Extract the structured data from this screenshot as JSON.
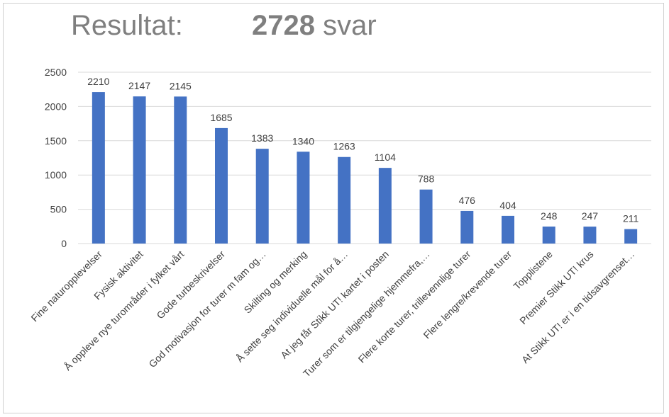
{
  "header": {
    "label": "Resultat:",
    "count": "2728",
    "unit": "svar"
  },
  "colors": {
    "bar": "#4472c4",
    "grid": "#d9d9d9",
    "text": "#404040",
    "title": "#7f7f7f"
  },
  "chart_data": {
    "type": "bar",
    "title": "",
    "xlabel": "",
    "ylabel": "",
    "ylim": [
      0,
      2500
    ],
    "yticks": [
      0,
      500,
      1000,
      1500,
      2000,
      2500
    ],
    "grid": true,
    "categories": [
      "Fine naturopplevelser",
      "Fysisk aktivitet",
      "Å oppleve nye turområder i fylket vårt",
      "Gode turbeskrivelser",
      "God motivasjon for turer m fam og…",
      "Skilting og merking",
      "Å sette seg individuelle mål for å…",
      "At jeg får Stikk UT! kartet i posten",
      "Turer som er tilgjengelige hjemmefra,…",
      "Flere korte turer, trillevennlige turer",
      "Flere lengre/krevende turer",
      "Topplistene",
      "Premier Stikk UT! krus",
      "At Stikk UT! er i en tidsavgrenset…"
    ],
    "values": [
      2210,
      2147,
      2145,
      1685,
      1383,
      1340,
      1263,
      1104,
      788,
      476,
      404,
      248,
      247,
      211
    ]
  }
}
